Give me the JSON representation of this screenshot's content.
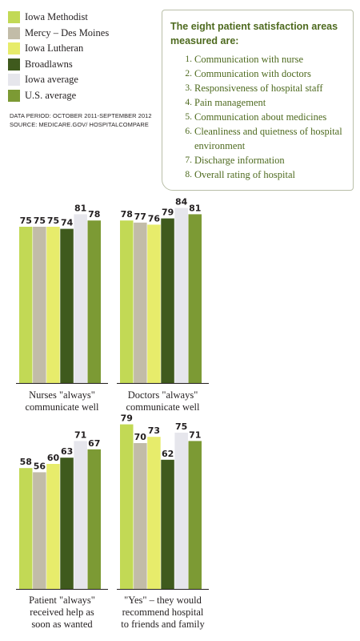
{
  "legend": [
    {
      "label": "Iowa Methodist",
      "color": "#c2d955"
    },
    {
      "label": "Mercy – Des Moines",
      "color": "#c2bca8"
    },
    {
      "label": "Iowa Lutheran",
      "color": "#e7ec6b"
    },
    {
      "label": "Broadlawns",
      "color": "#3f5a1d"
    },
    {
      "label": "Iowa average",
      "color": "#e6e6ec"
    },
    {
      "label": "U.S. average",
      "color": "#7c9a34"
    }
  ],
  "source": {
    "data_period": "DATA PERIOD: OCTOBER 2011-SEPTEMBER 2012",
    "source": "SOURCE: MEDICARE.GOV/ HOSPITALCOMPARE"
  },
  "info_box": {
    "title": "The eight patient satisfaction areas measured are:",
    "items": [
      {
        "num": "1.",
        "text": "Communication with nurse"
      },
      {
        "num": "2.",
        "text": "Communication with doctors"
      },
      {
        "num": "3.",
        "text": "Responsiveness of hospital staff"
      },
      {
        "num": "4.",
        "text": "Pain management"
      },
      {
        "num": "5.",
        "text": "Communication about medicines"
      },
      {
        "num": "6.",
        "text": "Cleanliness and quietness of hospital environment"
      },
      {
        "num": "7.",
        "text": "Discharge information"
      },
      {
        "num": "8.",
        "text": "Overall rating of hospital"
      }
    ]
  },
  "chart_data": [
    {
      "type": "bar",
      "title": "Nurses \"always\" communicate well",
      "title_lines": [
        "Nurses \"always\"",
        "communicate well"
      ],
      "categories": [
        "Iowa Methodist",
        "Mercy – Des Moines",
        "Iowa Lutheran",
        "Broadlawns",
        "Iowa average",
        "U.S. average"
      ],
      "values": [
        75,
        75,
        75,
        74,
        81,
        78
      ]
    },
    {
      "type": "bar",
      "title": "Doctors \"always\" communicate well",
      "title_lines": [
        "Doctors \"always\"",
        "communicate well"
      ],
      "categories": [
        "Iowa Methodist",
        "Mercy – Des Moines",
        "Iowa Lutheran",
        "Broadlawns",
        "Iowa average",
        "U.S. average"
      ],
      "values": [
        78,
        77,
        76,
        79,
        84,
        81
      ]
    },
    {
      "type": "bar",
      "title": "Patient \"always\" received help as soon as wanted",
      "title_lines": [
        "Patient \"always\"",
        "received help as",
        "soon as wanted"
      ],
      "categories": [
        "Iowa Methodist",
        "Mercy – Des Moines",
        "Iowa Lutheran",
        "Broadlawns",
        "Iowa average",
        "U.S. average"
      ],
      "values": [
        58,
        56,
        60,
        63,
        71,
        67
      ]
    },
    {
      "type": "bar",
      "title": "\"Yes\" – they would recommend hospital to friends and family",
      "title_lines": [
        "\"Yes\" – they would",
        "recommend hospital",
        "to friends and family"
      ],
      "categories": [
        "Iowa Methodist",
        "Mercy – Des Moines",
        "Iowa Lutheran",
        "Broadlawns",
        "Iowa average",
        "U.S. average"
      ],
      "values": [
        79,
        70,
        73,
        62,
        75,
        71
      ]
    }
  ]
}
